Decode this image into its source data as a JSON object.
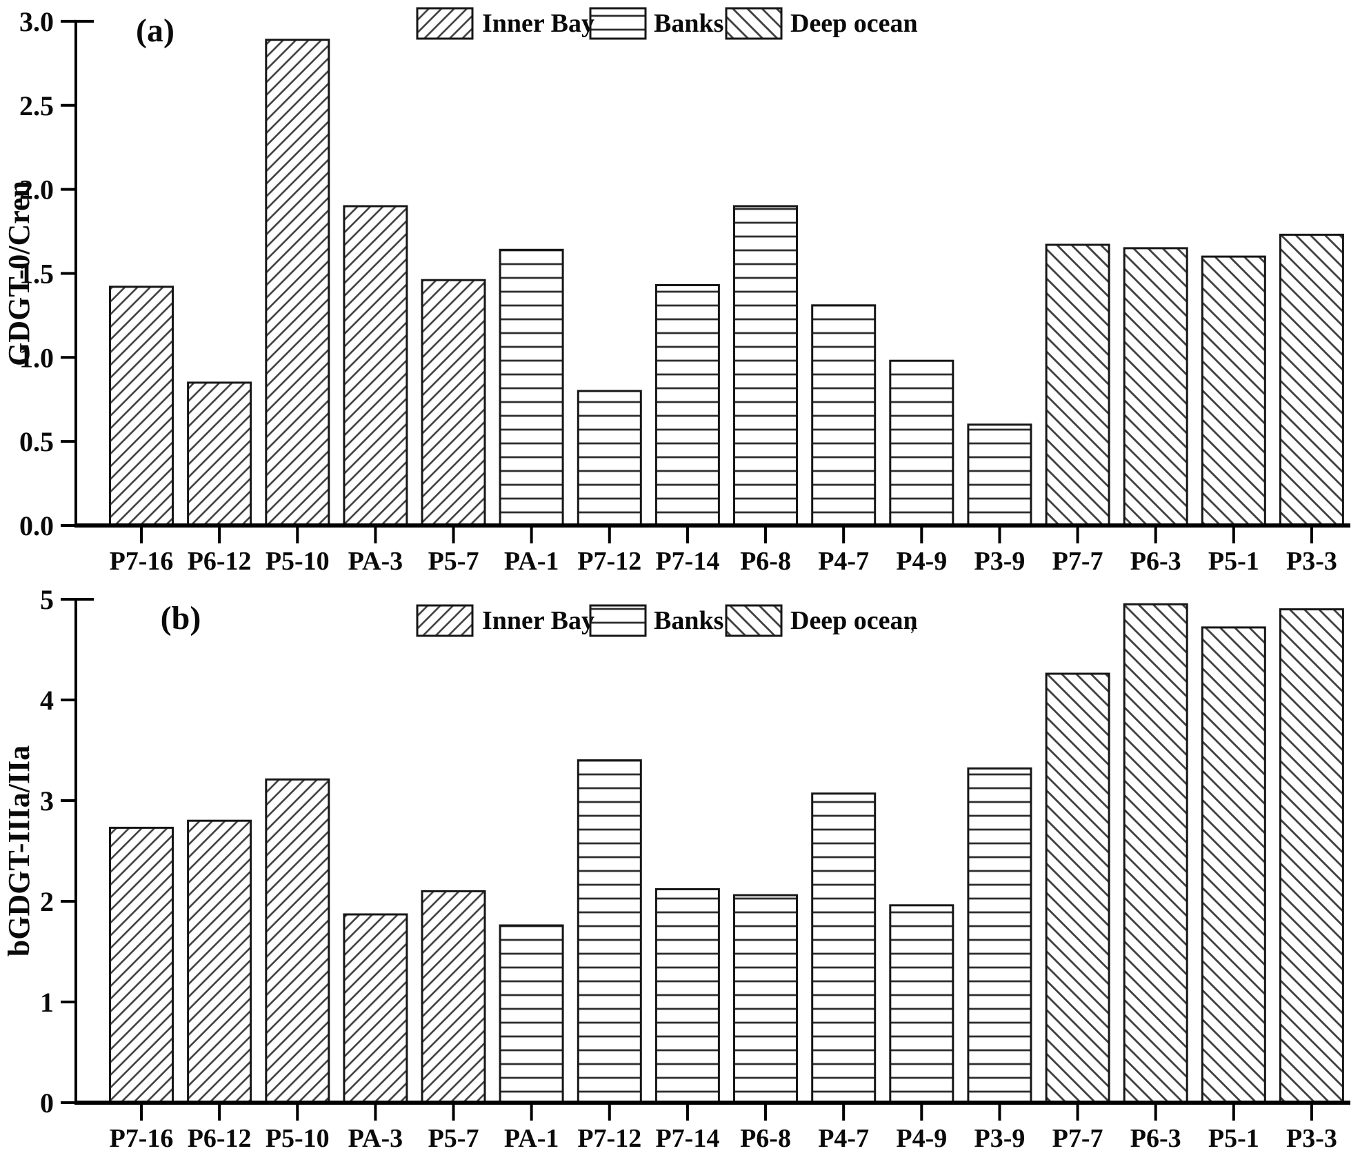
{
  "figure": {
    "background": "#ffffff",
    "text_color": "#0a0a0a",
    "axis_color": "#000000",
    "bar_edge_color": "#161616",
    "hatch_color": "#3d3d3d"
  },
  "legend": {
    "items": [
      {
        "label": "Inner Bay",
        "pattern": "diagonal-forward",
        "icon": "hatch-forward-swatch"
      },
      {
        "label": "Banks",
        "pattern": "horizontal",
        "icon": "hatch-horizontal-swatch"
      },
      {
        "label": "Deep ocean",
        "pattern": "diagonal-back",
        "icon": "hatch-back-swatch"
      }
    ]
  },
  "chart_data": [
    {
      "panel_label": "(a)",
      "type": "bar",
      "title": "",
      "xlabel": "",
      "ylabel": "GDGT-0/Cren",
      "ylim": [
        0,
        3.0
      ],
      "grid": false,
      "legend_position": "top-center",
      "yticks": [
        {
          "value": 0.0,
          "label": "0.0"
        },
        {
          "value": 0.5,
          "label": "0.5"
        },
        {
          "value": 1.0,
          "label": "1.0"
        },
        {
          "value": 1.5,
          "label": "1.5"
        },
        {
          "value": 2.0,
          "label": "2.0"
        },
        {
          "value": 2.5,
          "label": "2.5"
        },
        {
          "value": 3.0,
          "label": "3.0"
        }
      ],
      "categories": [
        "P7-16",
        "P6-12",
        "P5-10",
        "PA-3",
        "P5-7",
        "PA-1",
        "P7-12",
        "P7-14",
        "P6-8",
        "P4-7",
        "P4-9",
        "P3-9",
        "P7-7",
        "P6-3",
        "P5-1",
        "P3-3"
      ],
      "groups": [
        "Inner Bay",
        "Inner Bay",
        "Inner Bay",
        "Inner Bay",
        "Inner Bay",
        "Banks",
        "Banks",
        "Banks",
        "Banks",
        "Banks",
        "Banks",
        "Banks",
        "Deep ocean",
        "Deep ocean",
        "Deep ocean",
        "Deep ocean"
      ],
      "values": [
        1.42,
        0.85,
        2.89,
        1.9,
        1.46,
        1.64,
        0.8,
        1.43,
        1.9,
        1.31,
        0.98,
        0.6,
        1.67,
        1.65,
        1.6,
        1.73
      ]
    },
    {
      "panel_label": "(b)",
      "type": "bar",
      "title": "",
      "xlabel": "",
      "ylabel": "bGDGT-IIIa/IIa",
      "ylim": [
        0,
        5
      ],
      "grid": false,
      "legend_position": "top-center",
      "legend_trailing_mark": ",",
      "yticks": [
        {
          "value": 0,
          "label": "0"
        },
        {
          "value": 1,
          "label": "1"
        },
        {
          "value": 2,
          "label": "2"
        },
        {
          "value": 3,
          "label": "3"
        },
        {
          "value": 4,
          "label": "4"
        },
        {
          "value": 5,
          "label": "5"
        }
      ],
      "categories": [
        "P7-16",
        "P6-12",
        "P5-10",
        "PA-3",
        "P5-7",
        "PA-1",
        "P7-12",
        "P7-14",
        "P6-8",
        "P4-7",
        "P4-9",
        "P3-9",
        "P7-7",
        "P6-3",
        "P5-1",
        "P3-3"
      ],
      "groups": [
        "Inner Bay",
        "Inner Bay",
        "Inner Bay",
        "Inner Bay",
        "Inner Bay",
        "Banks",
        "Banks",
        "Banks",
        "Banks",
        "Banks",
        "Banks",
        "Banks",
        "Deep ocean",
        "Deep ocean",
        "Deep ocean",
        "Deep ocean"
      ],
      "values": [
        2.73,
        2.8,
        3.21,
        1.87,
        2.1,
        1.76,
        3.4,
        2.12,
        2.06,
        3.07,
        1.96,
        3.32,
        4.26,
        4.95,
        4.72,
        4.9
      ]
    }
  ]
}
